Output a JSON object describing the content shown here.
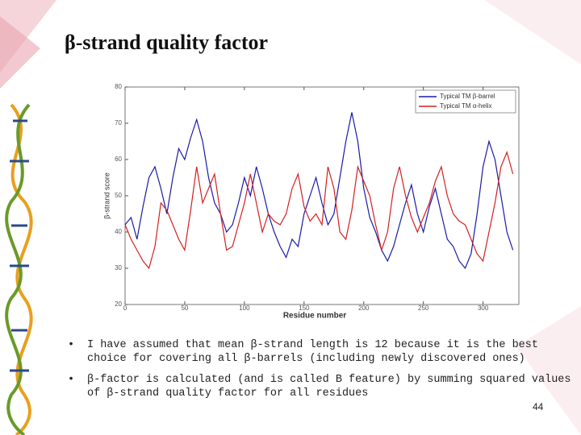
{
  "title": "β-strand quality factor",
  "bullets": [
    "I have assumed that mean β-strand length is 12 because it is the best choice for covering all β-barrels (including newly discovered ones)",
    "β-factor is calculated (and is called B feature) by summing squared values of β-strand quality factor for all residues"
  ],
  "page_number": "44",
  "chart_data": {
    "type": "line",
    "xlabel": "Residue number",
    "ylabel": "β-strand score",
    "x": [
      0,
      5,
      10,
      15,
      20,
      25,
      30,
      35,
      40,
      45,
      50,
      55,
      60,
      65,
      70,
      75,
      80,
      85,
      90,
      95,
      100,
      105,
      110,
      115,
      120,
      125,
      130,
      135,
      140,
      145,
      150,
      155,
      160,
      165,
      170,
      175,
      180,
      185,
      190,
      195,
      200,
      205,
      210,
      215,
      220,
      225,
      230,
      235,
      240,
      245,
      250,
      255,
      260,
      265,
      270,
      275,
      280,
      285,
      290,
      295,
      300,
      305,
      310,
      315,
      320,
      325
    ],
    "series": [
      {
        "name": "Typical TM β-barrel",
        "color": "#1a1aa8",
        "values": [
          42,
          44,
          38,
          47,
          55,
          58,
          52,
          45,
          55,
          63,
          60,
          66,
          71,
          65,
          55,
          48,
          45,
          40,
          42,
          48,
          55,
          50,
          58,
          52,
          45,
          40,
          36,
          33,
          38,
          36,
          45,
          50,
          55,
          48,
          42,
          45,
          55,
          65,
          73,
          65,
          52,
          44,
          40,
          35,
          32,
          36,
          42,
          48,
          53,
          45,
          40,
          47,
          52,
          45,
          38,
          36,
          32,
          30,
          34,
          45,
          58,
          65,
          60,
          50,
          40,
          35
        ]
      },
      {
        "name": "Typical TM α-helix",
        "color": "#d42020",
        "values": [
          42,
          38,
          35,
          32,
          30,
          36,
          48,
          46,
          42,
          38,
          35,
          46,
          58,
          48,
          52,
          56,
          45,
          35,
          36,
          42,
          48,
          56,
          48,
          40,
          45,
          43,
          42,
          45,
          52,
          56,
          47,
          43,
          45,
          42,
          58,
          52,
          40,
          38,
          46,
          58,
          54,
          50,
          42,
          35,
          40,
          52,
          58,
          50,
          44,
          40,
          44,
          48,
          54,
          58,
          50,
          45,
          43,
          42,
          38,
          34,
          32,
          40,
          48,
          58,
          62,
          56
        ]
      }
    ],
    "xlim": [
      0,
      330
    ],
    "xticks": [
      0,
      50,
      100,
      150,
      200,
      250,
      300
    ],
    "ylim": [
      20,
      80
    ],
    "yticks": [
      20,
      30,
      40,
      50,
      60,
      70,
      80
    ],
    "legend": "upper right"
  }
}
